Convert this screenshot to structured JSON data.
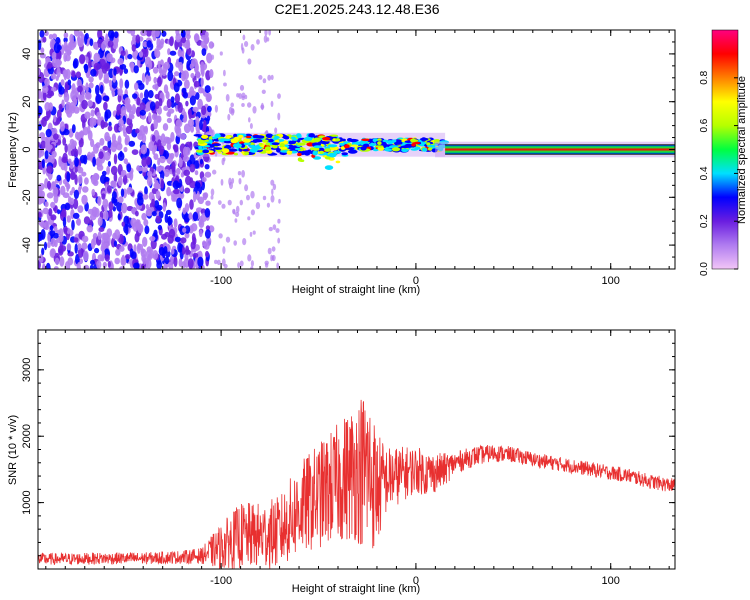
{
  "chart_data": [
    {
      "type": "heatmap",
      "title": "C2E1.2025.243.12.48.E36",
      "xlabel": "Height of straight line (km)",
      "ylabel": "Frequency (Hz)",
      "xlim": [
        -194,
        133
      ],
      "ylim": [
        -50,
        50
      ],
      "xticks": [
        -100,
        0,
        100
      ],
      "xtick_labels": [
        "-100",
        "0",
        "100"
      ],
      "yticks": [
        -40,
        -20,
        0,
        20,
        40
      ],
      "ytick_labels": [
        "-40",
        "-20",
        "0",
        "20",
        "40"
      ],
      "colorbar": {
        "label": "Normalized spectral amplitude",
        "range": [
          0,
          1
        ],
        "ticks": [
          0.0,
          0.2,
          0.4,
          0.6,
          0.8
        ],
        "tick_labels": [
          "0.0",
          "0.2",
          "0.4",
          "0.6",
          "0.8"
        ],
        "colors": [
          "#f2c6f7",
          "#b07cf0",
          "#6a1ee0",
          "#0000ff",
          "#00e0ff",
          "#00ff40",
          "#b6ff00",
          "#ffff00",
          "#ff8000",
          "#ff0000",
          "#ff007f"
        ]
      },
      "regions": [
        {
          "name": "noise",
          "x_range": [
            -194,
            -105
          ],
          "freq_range": [
            -50,
            50
          ],
          "amplitude": 0.15
        },
        {
          "name": "sparse-noise",
          "x_range": [
            -105,
            -70
          ],
          "freq_range": [
            -50,
            50
          ],
          "amplitude": 0.05
        },
        {
          "name": "signal-turbulent",
          "x_range": [
            -112,
            15
          ],
          "center_freq": 2,
          "bandwidth": 6,
          "amplitude": 0.5
        },
        {
          "name": "signal-stable",
          "x_range": [
            15,
            133
          ],
          "center_freq": 0,
          "bandwidth": 2,
          "amplitude": 0.95
        }
      ]
    },
    {
      "type": "line",
      "xlabel": "Height of straight line (km)",
      "ylabel": "SNR (10 * v/v)",
      "xlim": [
        -194,
        133
      ],
      "ylim": [
        0,
        3600
      ],
      "xticks": [
        -100,
        0,
        100
      ],
      "xtick_labels": [
        "-100",
        "0",
        "100"
      ],
      "yticks": [
        1000,
        2000,
        3000
      ],
      "ytick_labels": [
        "1000",
        "2000",
        "3000"
      ],
      "series": [
        {
          "name": "SNR",
          "color": "#e83030",
          "x": [
            -194,
            -180,
            -160,
            -140,
            -120,
            -110,
            -100,
            -90,
            -80,
            -70,
            -60,
            -50,
            -40,
            -30,
            -25,
            -20,
            -15,
            -10,
            -5,
            0,
            5,
            10,
            15,
            20,
            30,
            40,
            50,
            60,
            70,
            80,
            90,
            100,
            110,
            120,
            133
          ],
          "y": [
            150,
            150,
            160,
            160,
            180,
            200,
            330,
            500,
            500,
            550,
            900,
            1100,
            1300,
            1500,
            1500,
            1200,
            1350,
            1400,
            1450,
            1500,
            1450,
            1450,
            1500,
            1600,
            1700,
            1750,
            1720,
            1650,
            1600,
            1550,
            1500,
            1450,
            1400,
            1320,
            1250
          ],
          "noise_amplitude": [
            90,
            90,
            90,
            90,
            100,
            120,
            350,
            500,
            500,
            550,
            700,
            800,
            900,
            1100,
            1300,
            900,
            500,
            450,
            400,
            350,
            350,
            300,
            250,
            170,
            150,
            130,
            120,
            110,
            110,
            110,
            110,
            110,
            110,
            110,
            110
          ]
        }
      ]
    }
  ]
}
